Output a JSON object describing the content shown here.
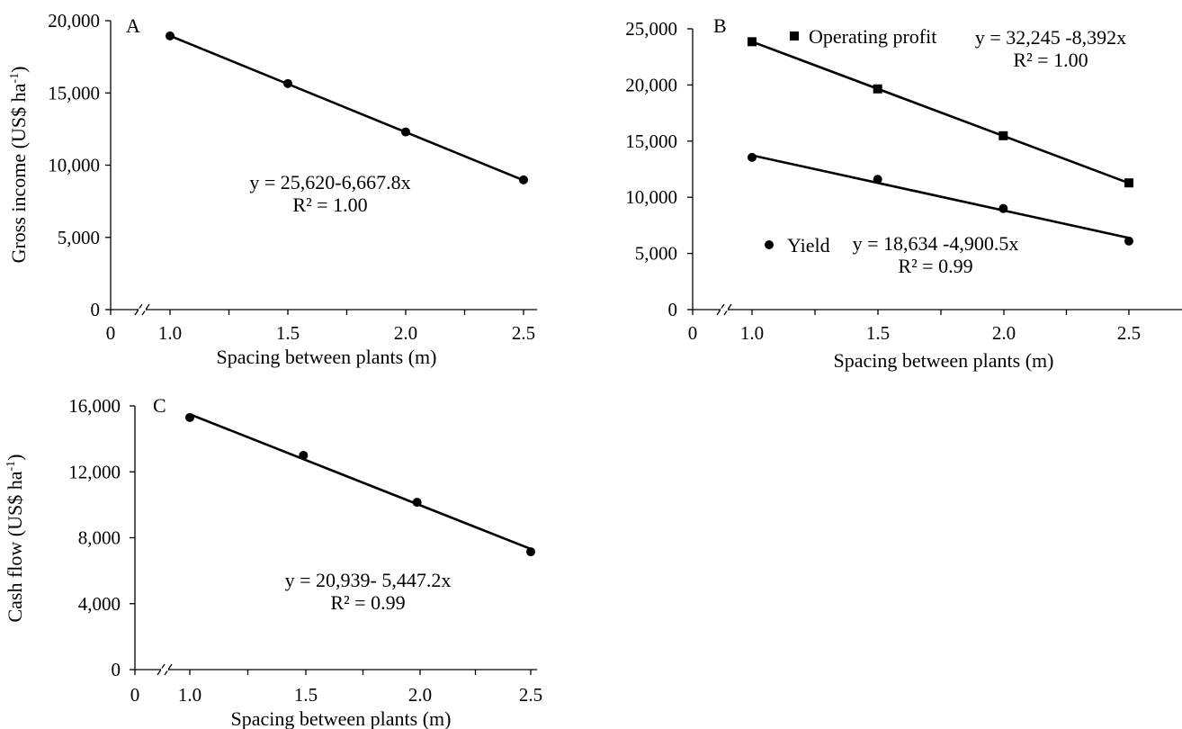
{
  "chart_data": [
    {
      "panel_label": "A",
      "type": "scatter",
      "xlabel": "Spacing between plants (m)",
      "ylabel": "Gross income (US$ ha",
      "ylabel_sup": "-1",
      "ylabel_close": ")",
      "xticks": [
        "0",
        "1.0",
        "1.5",
        "2.0",
        "2.5"
      ],
      "yticks": [
        "0",
        "5,000",
        "10,000",
        "15,000",
        "20,000"
      ],
      "ytick_values": [
        0,
        5000,
        10000,
        15000,
        20000
      ],
      "ylim": [
        0,
        20000
      ],
      "xlim": [
        1.0,
        2.5
      ],
      "series": [
        {
          "marker": "circle",
          "x": [
            1.0,
            1.5,
            2.0,
            2.5
          ],
          "y": [
            18950,
            15650,
            12300,
            8980
          ],
          "fit": {
            "intercept": 25620,
            "slope": -6667.8
          },
          "equation": "y = 25,620-6,667.8x",
          "r2": "R² = 1.00"
        }
      ]
    },
    {
      "panel_label": "B",
      "type": "scatter",
      "xlabel": "Spacing between plants (m)",
      "xticks": [
        "0",
        "1.0",
        "1.5",
        "2.0",
        "2.5"
      ],
      "yticks": [
        "0",
        "5,000",
        "10,000",
        "15,000",
        "20,000",
        "25,000"
      ],
      "ytick_values": [
        0,
        5000,
        10000,
        15000,
        20000,
        25000
      ],
      "ylim": [
        0,
        25000
      ],
      "xlim": [
        1.0,
        2.5
      ],
      "series": [
        {
          "name": "Operating profit",
          "marker": "square",
          "x": [
            1.0,
            1.5,
            2.0,
            2.5
          ],
          "y": [
            23850,
            19650,
            15480,
            11280
          ],
          "fit": {
            "intercept": 32245,
            "slope": -8392
          },
          "equation": "y = 32,245 -8,392x",
          "r2": "R² = 1.00"
        },
        {
          "name": "Yield",
          "marker": "circle",
          "x": [
            1.0,
            1.5,
            2.0,
            2.5
          ],
          "y": [
            13550,
            11600,
            9000,
            6100
          ],
          "fit": {
            "intercept": 18634,
            "slope": -4900.5
          },
          "equation": "y = 18,634 -4,900.5x",
          "r2": "R² = 0.99"
        }
      ]
    },
    {
      "panel_label": "C",
      "type": "scatter",
      "xlabel": "Spacing between plants (m)",
      "ylabel": "Cash flow (US$ ha",
      "ylabel_sup": "-1",
      "ylabel_close": ")",
      "xticks": [
        "0",
        "1.0",
        "1.5",
        "2.0",
        "2.5"
      ],
      "yticks": [
        "0",
        "4,000",
        "8,000",
        "12,000",
        "16,000"
      ],
      "ytick_values": [
        0,
        4000,
        8000,
        12000,
        16000
      ],
      "ylim": [
        0,
        16000
      ],
      "xlim": [
        1.0,
        2.5
      ],
      "series": [
        {
          "marker": "circle",
          "x": [
            1.0,
            1.5,
            2.0,
            2.5
          ],
          "y": [
            15300,
            13000,
            10150,
            7150
          ],
          "fit": {
            "intercept": 20939,
            "slope": -5447.2
          },
          "equation": "y = 20,939- 5,447.2x",
          "r2": "R² = 0.99"
        }
      ]
    }
  ]
}
